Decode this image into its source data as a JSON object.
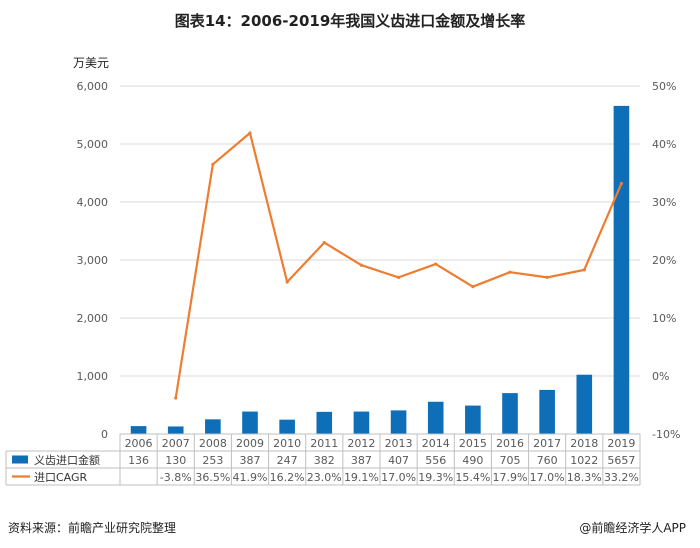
{
  "title": "图表14：2006-2019年我国义齿进口金额及增长率",
  "footer": {
    "source": "资料来源：前瞻产业研究院整理",
    "brand": "@前瞻经济学人APP"
  },
  "colors": {
    "bar": "#0E6EB8",
    "line": "#ED7D31",
    "axis_text": "#595959",
    "grid": "#D9D9D9"
  },
  "chart_data": {
    "type": "bar+line",
    "categories": [
      "2006",
      "2007",
      "2008",
      "2009",
      "2010",
      "2011",
      "2012",
      "2013",
      "2014",
      "2015",
      "2016",
      "2017",
      "2018",
      "2019"
    ],
    "series": [
      {
        "name": "义齿进口金额",
        "type": "bar",
        "axis": "left",
        "values": [
          136,
          130,
          253,
          387,
          247,
          382,
          387,
          407,
          556,
          490,
          705,
          760,
          1022,
          5657
        ],
        "labels": [
          "136",
          "130",
          "253",
          "387",
          "247",
          "382",
          "387",
          "407",
          "556",
          "490",
          "705",
          "760",
          "1022",
          "5657"
        ]
      },
      {
        "name": "进口CAGR",
        "type": "line",
        "axis": "right",
        "values": [
          null,
          -3.8,
          36.5,
          41.9,
          16.2,
          23.0,
          19.1,
          17.0,
          19.3,
          15.4,
          17.9,
          17.0,
          18.3,
          33.2
        ],
        "labels": [
          "",
          "-3.8%",
          "36.5%",
          "41.9%",
          "16.2%",
          "23.0%",
          "19.1%",
          "17.0%",
          "19.3%",
          "15.4%",
          "17.9%",
          "17.0%",
          "18.3%",
          "33.2%"
        ]
      }
    ],
    "y_left": {
      "unit": "万美元",
      "range": [
        0,
        6000
      ],
      "ticks": [
        "0",
        "1,000",
        "2,000",
        "3,000",
        "4,000",
        "5,000",
        "6,000"
      ]
    },
    "y_right": {
      "range": [
        -10,
        50
      ],
      "ticks": [
        "-10%",
        "0%",
        "10%",
        "20%",
        "30%",
        "40%",
        "50%"
      ]
    },
    "grid": true,
    "legend": "table-bottom"
  }
}
